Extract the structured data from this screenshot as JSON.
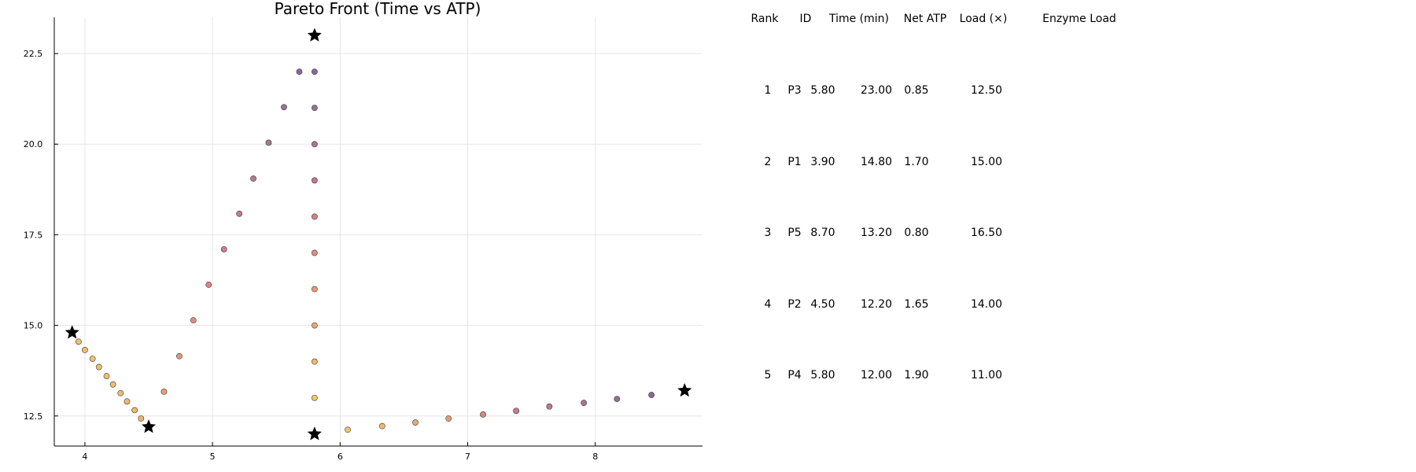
{
  "chart_data": {
    "type": "scatter",
    "title": "Pareto Front (Time vs ATP)",
    "xlabel": "",
    "ylabel": "",
    "xlim": [
      3.76,
      8.84
    ],
    "ylim": [
      11.67,
      23.5
    ],
    "xticks": [
      4,
      5,
      6,
      7,
      8
    ],
    "yticks": [
      12.5,
      15.0,
      17.5,
      20.0,
      22.5
    ],
    "xtick_labels": [
      "4",
      "5",
      "6",
      "7",
      "8"
    ],
    "ytick_labels": [
      "12.5",
      "15.0",
      "17.5",
      "20.0",
      "22.5"
    ],
    "grid": true,
    "legend": "none",
    "colors": {
      "low": "#F3C04A",
      "mid": "#D36B70",
      "high": "#5E4C8C",
      "star": "#000000",
      "grid": "#e6e6e6",
      "axis": "#000000"
    },
    "series": [
      {
        "marker": "circle",
        "points": [
          {
            "x": 3.95,
            "y": 14.55,
            "c": 0.05
          },
          {
            "x": 4.0,
            "y": 14.32,
            "c": 0.06
          },
          {
            "x": 4.06,
            "y": 14.08,
            "c": 0.07
          },
          {
            "x": 4.11,
            "y": 13.85,
            "c": 0.08
          },
          {
            "x": 4.17,
            "y": 13.6,
            "c": 0.09
          },
          {
            "x": 4.22,
            "y": 13.37,
            "c": 0.1
          },
          {
            "x": 4.28,
            "y": 13.13,
            "c": 0.11
          },
          {
            "x": 4.33,
            "y": 12.9,
            "c": 0.12
          },
          {
            "x": 4.39,
            "y": 12.66,
            "c": 0.13
          },
          {
            "x": 4.44,
            "y": 12.43,
            "c": 0.14
          },
          {
            "x": 4.62,
            "y": 13.17,
            "c": 0.3
          },
          {
            "x": 4.74,
            "y": 14.15,
            "c": 0.36
          },
          {
            "x": 4.85,
            "y": 15.14,
            "c": 0.42
          },
          {
            "x": 4.97,
            "y": 16.12,
            "c": 0.48
          },
          {
            "x": 5.09,
            "y": 17.1,
            "c": 0.55
          },
          {
            "x": 5.21,
            "y": 18.08,
            "c": 0.61
          },
          {
            "x": 5.32,
            "y": 19.05,
            "c": 0.67
          },
          {
            "x": 5.44,
            "y": 20.04,
            "c": 0.73
          },
          {
            "x": 5.56,
            "y": 21.02,
            "c": 0.8
          },
          {
            "x": 5.68,
            "y": 22.0,
            "c": 0.92
          },
          {
            "x": 5.8,
            "y": 13.0,
            "c": 0.02
          },
          {
            "x": 5.8,
            "y": 14.0,
            "c": 0.12
          },
          {
            "x": 5.8,
            "y": 15.0,
            "c": 0.22
          },
          {
            "x": 5.8,
            "y": 16.0,
            "c": 0.32
          },
          {
            "x": 5.8,
            "y": 17.0,
            "c": 0.42
          },
          {
            "x": 5.8,
            "y": 18.0,
            "c": 0.52
          },
          {
            "x": 5.8,
            "y": 19.0,
            "c": 0.62
          },
          {
            "x": 5.8,
            "y": 20.0,
            "c": 0.72
          },
          {
            "x": 5.8,
            "y": 21.0,
            "c": 0.82
          },
          {
            "x": 5.8,
            "y": 22.0,
            "c": 0.92
          },
          {
            "x": 6.06,
            "y": 12.12,
            "c": 0.03
          },
          {
            "x": 6.33,
            "y": 12.22,
            "c": 0.12
          },
          {
            "x": 6.59,
            "y": 12.32,
            "c": 0.22
          },
          {
            "x": 6.85,
            "y": 12.43,
            "c": 0.32
          },
          {
            "x": 7.12,
            "y": 12.54,
            "c": 0.48
          },
          {
            "x": 7.38,
            "y": 12.64,
            "c": 0.58
          },
          {
            "x": 7.64,
            "y": 12.76,
            "c": 0.66
          },
          {
            "x": 7.91,
            "y": 12.86,
            "c": 0.74
          },
          {
            "x": 8.17,
            "y": 12.97,
            "c": 0.84
          },
          {
            "x": 8.44,
            "y": 13.08,
            "c": 0.94
          }
        ]
      },
      {
        "marker": "star",
        "points": [
          {
            "x": 3.9,
            "y": 14.8
          },
          {
            "x": 4.5,
            "y": 12.2
          },
          {
            "x": 5.8,
            "y": 23.0
          },
          {
            "x": 5.8,
            "y": 12.0
          },
          {
            "x": 8.7,
            "y": 13.2
          }
        ]
      }
    ],
    "table": {
      "headers": [
        "Rank",
        "ID",
        "Time (min)",
        "Net ATP",
        "Load (×)",
        "Enzyme Load"
      ],
      "rows": [
        [
          "1",
          "P3",
          "5.80",
          "23.00",
          "0.85",
          "12.50"
        ],
        [
          "2",
          "P1",
          "3.90",
          "14.80",
          "1.70",
          "15.00"
        ],
        [
          "3",
          "P5",
          "8.70",
          "13.20",
          "0.80",
          "16.50"
        ],
        [
          "4",
          "P2",
          "4.50",
          "12.20",
          "1.65",
          "14.00"
        ],
        [
          "5",
          "P4",
          "5.80",
          "12.00",
          "1.90",
          "11.00"
        ]
      ]
    }
  }
}
